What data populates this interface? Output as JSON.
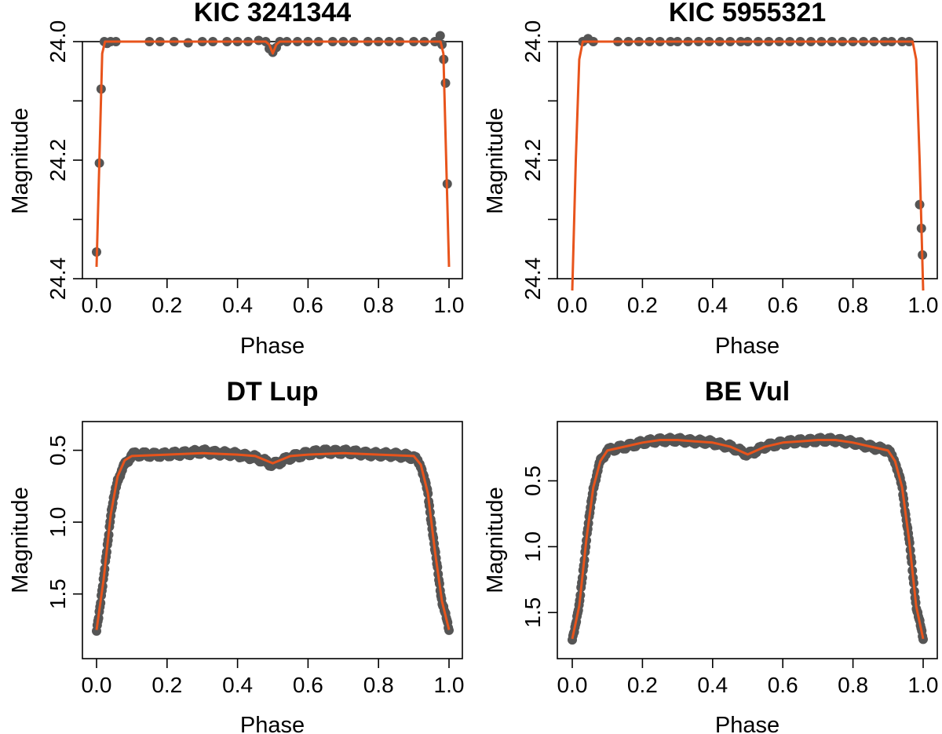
{
  "colors": {
    "points": "#555555",
    "model": "#e8541c",
    "axes": "#000000"
  },
  "chart_data": [
    {
      "type": "scatter",
      "title": "KIC 3241344",
      "xlabel": "Phase",
      "ylabel": "Magnitude",
      "xlim": [
        0,
        1
      ],
      "ylim": [
        24.4,
        24.0
      ],
      "y_reversed": true,
      "xticks": [
        0.0,
        0.2,
        0.4,
        0.6,
        0.8,
        1.0
      ],
      "xtick_labels": [
        "0.0",
        "0.2",
        "0.4",
        "0.6",
        "0.8",
        "1.0"
      ],
      "yticks": [
        24.0,
        24.2,
        24.4
      ],
      "ytick_labels": [
        "24.0",
        "24.2",
        "24.4"
      ],
      "yticks_minor": [
        24.1,
        24.3
      ],
      "observations": {
        "x": [
          0.0,
          0.008,
          0.013,
          0.022,
          0.03,
          0.04,
          0.055,
          0.15,
          0.18,
          0.22,
          0.26,
          0.3,
          0.33,
          0.37,
          0.4,
          0.43,
          0.46,
          0.48,
          0.49,
          0.5,
          0.51,
          0.52,
          0.54,
          0.57,
          0.6,
          0.63,
          0.67,
          0.7,
          0.73,
          0.77,
          0.8,
          0.83,
          0.86,
          0.9,
          0.93,
          0.96,
          0.975,
          0.98,
          0.985,
          0.99,
          0.995
        ],
        "y": [
          24.355,
          24.205,
          24.08,
          24.0,
          24.003,
          24.0,
          24.0,
          24.0,
          24.0,
          24.0,
          24.002,
          24.0,
          24.0,
          24.0,
          24.0,
          24.0,
          23.998,
          24.0,
          24.012,
          24.018,
          24.01,
          24.0,
          24.0,
          24.0,
          24.0,
          24.0,
          24.0,
          24.0,
          24.0,
          24.0,
          24.0,
          24.0,
          24.0,
          24.0,
          24.0,
          24.0,
          23.99,
          24.005,
          24.03,
          24.07,
          24.24
        ]
      },
      "model": {
        "x": [
          0.0,
          0.008,
          0.016,
          0.024,
          0.04,
          0.48,
          0.49,
          0.5,
          0.51,
          0.52,
          0.96,
          0.976,
          0.984,
          0.992,
          1.0
        ],
        "y": [
          24.38,
          24.2,
          24.02,
          24.0,
          24.0,
          24.0,
          24.005,
          24.02,
          24.005,
          24.0,
          24.0,
          24.0,
          24.02,
          24.2,
          24.38
        ]
      }
    },
    {
      "type": "scatter",
      "title": "KIC 5955321",
      "xlabel": "Phase",
      "ylabel": "Magnitude",
      "xlim": [
        0,
        1
      ],
      "ylim": [
        24.4,
        24.0
      ],
      "y_reversed": true,
      "xticks": [
        0.0,
        0.2,
        0.4,
        0.6,
        0.8,
        1.0
      ],
      "xtick_labels": [
        "0.0",
        "0.2",
        "0.4",
        "0.6",
        "0.8",
        "1.0"
      ],
      "yticks": [
        24.0,
        24.2,
        24.4
      ],
      "ytick_labels": [
        "24.0",
        "24.2",
        "24.4"
      ],
      "yticks_minor": [
        24.1,
        24.3
      ],
      "observations": {
        "x": [
          0.03,
          0.045,
          0.06,
          0.13,
          0.16,
          0.19,
          0.22,
          0.25,
          0.28,
          0.3,
          0.33,
          0.36,
          0.39,
          0.42,
          0.45,
          0.48,
          0.5,
          0.53,
          0.56,
          0.59,
          0.62,
          0.65,
          0.68,
          0.71,
          0.74,
          0.77,
          0.8,
          0.83,
          0.86,
          0.89,
          0.91,
          0.94,
          0.96,
          0.99,
          0.995,
          0.998
        ],
        "y": [
          24.0,
          23.995,
          24.0,
          24.0,
          24.0,
          24.0,
          24.0,
          24.0,
          24.0,
          24.0,
          24.0,
          24.0,
          24.0,
          24.0,
          24.0,
          24.0,
          24.0,
          24.0,
          24.0,
          24.0,
          24.0,
          24.0,
          24.0,
          24.0,
          24.0,
          24.0,
          24.0,
          24.0,
          24.0,
          24.0,
          24.0,
          24.0,
          24.0,
          24.275,
          24.315,
          24.36
        ]
      },
      "model": {
        "x": [
          0.0,
          0.01,
          0.02,
          0.03,
          0.97,
          0.98,
          0.99,
          1.0
        ],
        "y": [
          24.42,
          24.2,
          24.03,
          24.0,
          24.0,
          24.03,
          24.2,
          24.42
        ]
      }
    },
    {
      "type": "scatter",
      "title": "DT Lup",
      "xlabel": "Phase",
      "ylabel": "Magnitude",
      "xlim": [
        0,
        1
      ],
      "ylim": [
        1.95,
        0.3
      ],
      "y_reversed": true,
      "xticks": [
        0.0,
        0.2,
        0.4,
        0.6,
        0.8,
        1.0
      ],
      "xtick_labels": [
        "0.0",
        "0.2",
        "0.4",
        "0.6",
        "0.8",
        "1.0"
      ],
      "yticks": [
        0.5,
        1.0,
        1.5
      ],
      "ytick_labels": [
        "0.5",
        "1.0",
        "1.5"
      ],
      "observations_band": {
        "x": [
          0.0,
          0.02,
          0.04,
          0.06,
          0.08,
          0.1,
          0.15,
          0.2,
          0.25,
          0.3,
          0.35,
          0.4,
          0.45,
          0.5,
          0.55,
          0.6,
          0.65,
          0.7,
          0.75,
          0.8,
          0.85,
          0.9,
          0.92,
          0.94,
          0.96,
          0.98,
          1.0
        ],
        "y": [
          1.75,
          1.4,
          0.95,
          0.7,
          0.6,
          0.53,
          0.53,
          0.53,
          0.52,
          0.51,
          0.52,
          0.53,
          0.55,
          0.6,
          0.55,
          0.52,
          0.51,
          0.51,
          0.52,
          0.53,
          0.53,
          0.55,
          0.6,
          0.8,
          1.2,
          1.55,
          1.75
        ]
      },
      "model": {
        "x": [
          0.0,
          0.02,
          0.04,
          0.06,
          0.08,
          0.1,
          0.2,
          0.3,
          0.4,
          0.45,
          0.5,
          0.55,
          0.6,
          0.7,
          0.8,
          0.9,
          0.92,
          0.94,
          0.96,
          0.98,
          1.0
        ],
        "y": [
          1.75,
          1.4,
          0.95,
          0.68,
          0.57,
          0.54,
          0.53,
          0.52,
          0.53,
          0.54,
          0.59,
          0.54,
          0.53,
          0.52,
          0.53,
          0.54,
          0.6,
          0.8,
          1.2,
          1.55,
          1.75
        ]
      }
    },
    {
      "type": "scatter",
      "title": "BE Vul",
      "xlabel": "Phase",
      "ylabel": "Magnitude",
      "xlim": [
        0,
        1
      ],
      "ylim": [
        1.85,
        0.05
      ],
      "y_reversed": true,
      "xticks": [
        0.0,
        0.2,
        0.4,
        0.6,
        0.8,
        1.0
      ],
      "xtick_labels": [
        "0.0",
        "0.2",
        "0.4",
        "0.6",
        "0.8",
        "1.0"
      ],
      "yticks": [
        0.5,
        1.0,
        1.5
      ],
      "ytick_labels": [
        "0.5",
        "1.0",
        "1.5"
      ],
      "observations_band": {
        "x": [
          0.0,
          0.02,
          0.04,
          0.06,
          0.08,
          0.1,
          0.15,
          0.2,
          0.25,
          0.3,
          0.35,
          0.4,
          0.45,
          0.5,
          0.55,
          0.6,
          0.65,
          0.7,
          0.75,
          0.8,
          0.85,
          0.9,
          0.92,
          0.94,
          0.96,
          0.98,
          1.0
        ],
        "y": [
          1.7,
          1.45,
          0.95,
          0.55,
          0.35,
          0.27,
          0.24,
          0.21,
          0.19,
          0.19,
          0.2,
          0.21,
          0.24,
          0.3,
          0.24,
          0.21,
          0.2,
          0.19,
          0.19,
          0.21,
          0.24,
          0.27,
          0.35,
          0.55,
          0.95,
          1.45,
          1.7
        ]
      },
      "model": {
        "x": [
          0.0,
          0.02,
          0.04,
          0.06,
          0.08,
          0.1,
          0.15,
          0.2,
          0.25,
          0.3,
          0.35,
          0.4,
          0.45,
          0.5,
          0.55,
          0.6,
          0.65,
          0.7,
          0.75,
          0.8,
          0.85,
          0.9,
          0.92,
          0.94,
          0.96,
          0.98,
          1.0
        ],
        "y": [
          1.7,
          1.45,
          0.95,
          0.55,
          0.35,
          0.27,
          0.24,
          0.21,
          0.19,
          0.19,
          0.2,
          0.21,
          0.24,
          0.3,
          0.24,
          0.21,
          0.2,
          0.19,
          0.19,
          0.21,
          0.24,
          0.27,
          0.35,
          0.55,
          0.95,
          1.45,
          1.7
        ]
      }
    }
  ]
}
